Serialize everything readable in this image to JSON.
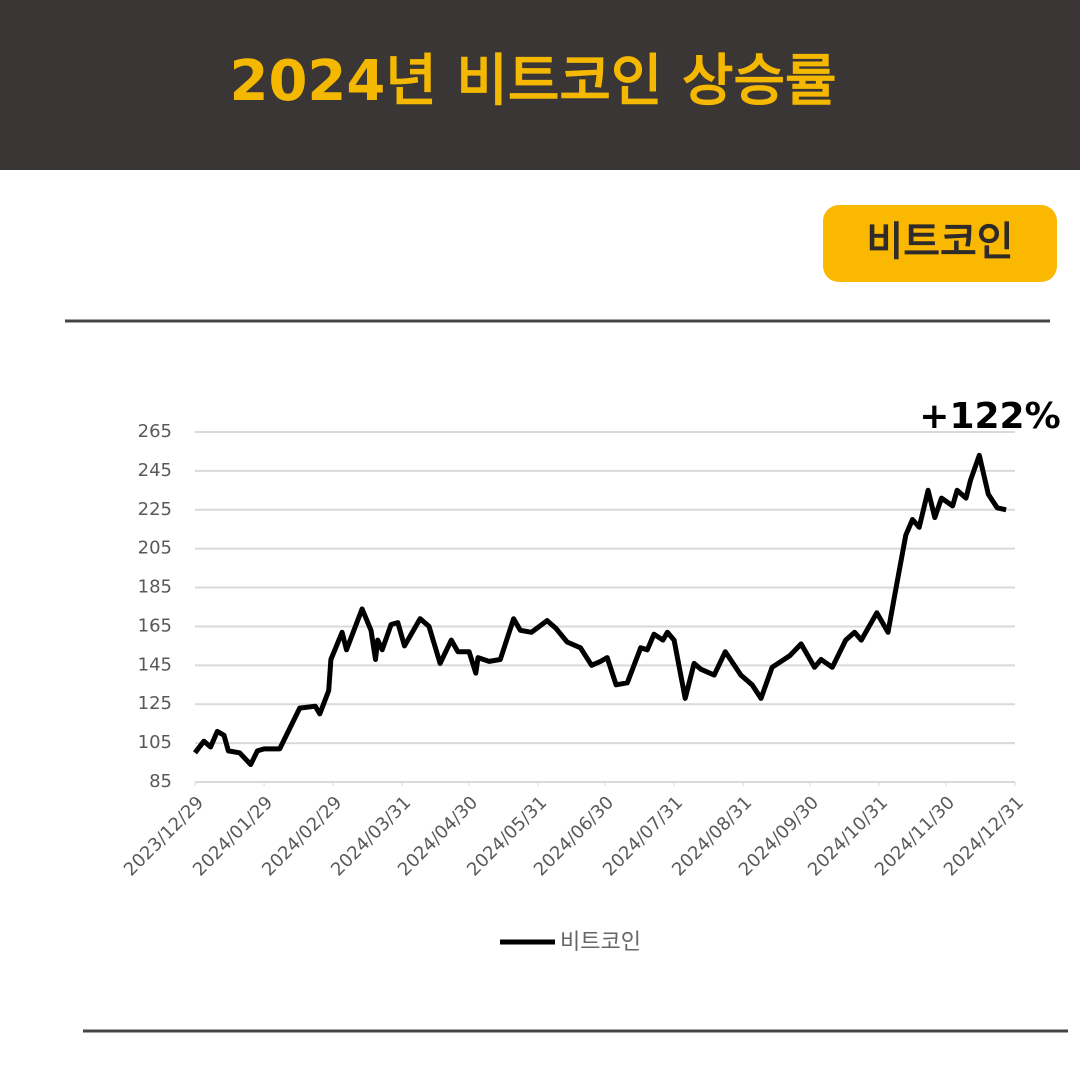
{
  "badge": "비트코인",
  "chart_data": {
    "type": "line",
    "title": "2024년 비트코인 상승률",
    "annotation": "+122%",
    "x": [
      "2023/12/29",
      "2024/01/02",
      "2024/01/05",
      "2024/01/08",
      "2024/01/11",
      "2024/01/13",
      "2024/01/18",
      "2024/01/23",
      "2024/01/26",
      "2024/01/29",
      "2024/02/05",
      "2024/02/14",
      "2024/02/21",
      "2024/02/23",
      "2024/02/27",
      "2024/02/28",
      "2024/03/04",
      "2024/03/06",
      "2024/03/13",
      "2024/03/17",
      "2024/03/19",
      "2024/03/20",
      "2024/03/22",
      "2024/03/26",
      "2024/03/29",
      "2024/04/01",
      "2024/04/08",
      "2024/04/12",
      "2024/04/17",
      "2024/04/22",
      "2024/04/25",
      "2024/04/30",
      "2024/05/03",
      "2024/05/04",
      "2024/05/09",
      "2024/05/14",
      "2024/05/20",
      "2024/05/23",
      "2024/05/28",
      "2024/06/04",
      "2024/06/08",
      "2024/06/13",
      "2024/06/19",
      "2024/06/24",
      "2024/06/28",
      "2024/07/01",
      "2024/07/05",
      "2024/07/10",
      "2024/07/16",
      "2024/07/19",
      "2024/07/22",
      "2024/07/26",
      "2024/07/28",
      "2024/07/31",
      "2024/08/05",
      "2024/08/09",
      "2024/08/12",
      "2024/08/18",
      "2024/08/23",
      "2024/08/30",
      "2024/09/04",
      "2024/09/08",
      "2024/09/13",
      "2024/09/21",
      "2024/09/26",
      "2024/10/02",
      "2024/10/05",
      "2024/10/10",
      "2024/10/16",
      "2024/10/20",
      "2024/10/23",
      "2024/10/30",
      "2024/11/04",
      "2024/11/07",
      "2024/11/12",
      "2024/11/15",
      "2024/11/18",
      "2024/11/22",
      "2024/11/25",
      "2024/11/28",
      "2024/12/03",
      "2024/12/05",
      "2024/12/09",
      "2024/12/11",
      "2024/12/15",
      "2024/12/19",
      "2024/12/23",
      "2024/12/27"
    ],
    "series": [
      {
        "name": "비트코인",
        "color": "#000000",
        "values": [
          100,
          106,
          103,
          111,
          109,
          101,
          100,
          94,
          101,
          102,
          102,
          123,
          124,
          120,
          132,
          148,
          162,
          153,
          174,
          163,
          148,
          158,
          153,
          166,
          167,
          155,
          169,
          165,
          146,
          158,
          152,
          152,
          141,
          149,
          147,
          148,
          169,
          163,
          162,
          168,
          164,
          157,
          154,
          145,
          147,
          149,
          135,
          136,
          154,
          153,
          161,
          158,
          162,
          158,
          128,
          146,
          143,
          140,
          152,
          140,
          135,
          128,
          144,
          150,
          156,
          144,
          148,
          144,
          158,
          162,
          158,
          172,
          162,
          181,
          212,
          220,
          216,
          235,
          221,
          231,
          227,
          235,
          231,
          240,
          253,
          233,
          226,
          225
        ]
      }
    ],
    "ylim": [
      85,
      265
    ],
    "yticks": [
      85,
      105,
      125,
      145,
      165,
      185,
      205,
      225,
      245,
      265
    ],
    "xlim": [
      "2023/12/29",
      "2024/12/31"
    ],
    "xticks": [
      "2023/12/29",
      "2024/01/29",
      "2024/02/29",
      "2024/03/31",
      "2024/04/30",
      "2024/05/31",
      "2024/06/30",
      "2024/07/31",
      "2024/08/31",
      "2024/09/30",
      "2024/10/31",
      "2024/11/30",
      "2024/12/31"
    ],
    "grid": true
  }
}
